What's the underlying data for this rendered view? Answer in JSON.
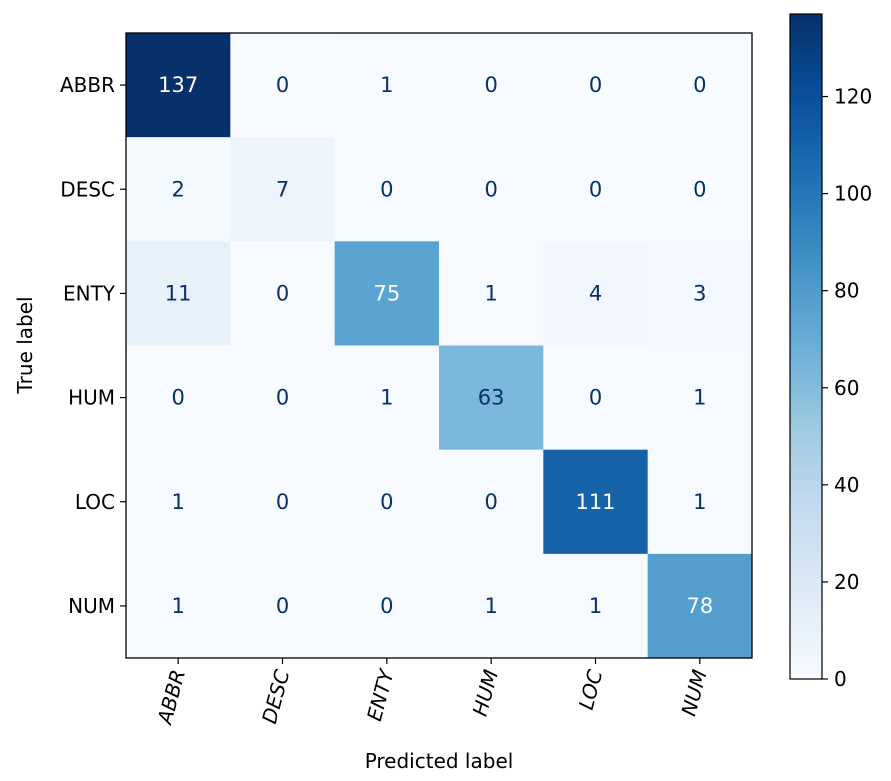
{
  "chart_data": {
    "type": "heatmap",
    "xlabel": "Predicted label",
    "ylabel": "True label",
    "x_categories": [
      "ABBR",
      "DESC",
      "ENTY",
      "HUM",
      "LOC",
      "NUM"
    ],
    "y_categories": [
      "ABBR",
      "DESC",
      "ENTY",
      "HUM",
      "LOC",
      "NUM"
    ],
    "matrix": [
      [
        137,
        0,
        1,
        0,
        0,
        0
      ],
      [
        2,
        7,
        0,
        0,
        0,
        0
      ],
      [
        11,
        0,
        75,
        1,
        4,
        3
      ],
      [
        0,
        0,
        1,
        63,
        0,
        1
      ],
      [
        1,
        0,
        0,
        0,
        111,
        1
      ],
      [
        1,
        0,
        0,
        1,
        1,
        78
      ]
    ],
    "colormap": "Blues",
    "value_range": [
      0,
      137
    ],
    "colorbar_ticks": [
      "0",
      "20",
      "40",
      "60",
      "80",
      "100",
      "120"
    ],
    "x_tick_rotation": "rotated",
    "grid": false
  }
}
